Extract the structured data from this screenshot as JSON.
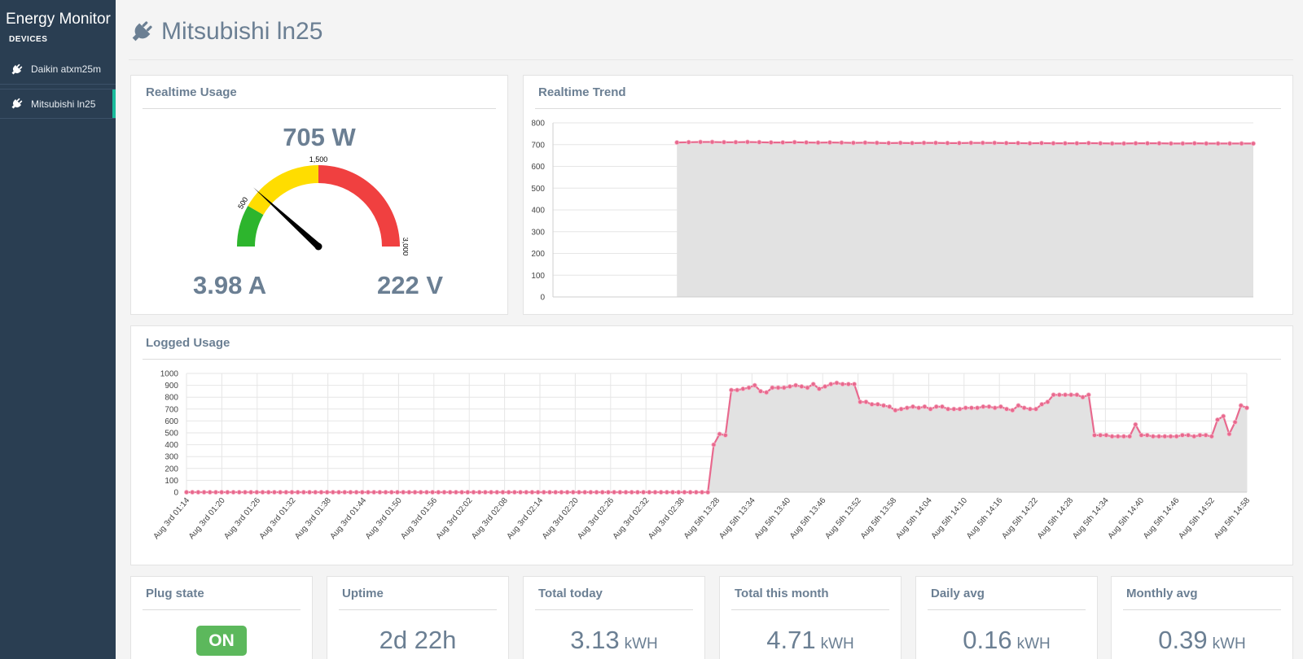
{
  "app": {
    "title": "Energy Monitor",
    "devices_header": "DEVICES"
  },
  "sidebar": {
    "items": [
      {
        "label": "Daikin atxm25m",
        "icon": "plug-icon",
        "active": false
      },
      {
        "label": "Mitsubishi ln25",
        "icon": "plug-icon",
        "active": true
      }
    ]
  },
  "header": {
    "title": "Mitsubishi ln25",
    "icon": "plug-icon"
  },
  "colors": {
    "sidebar": "#2a3e52",
    "line": "#e8698e",
    "green": "#2db52d",
    "yellow": "#ffdd00",
    "red": "#f04040",
    "badge": "#5cb85c",
    "active_marker": "#1abc9c"
  },
  "realtime": {
    "title": "Realtime Usage",
    "power": "705 W",
    "current": "3.98 A",
    "voltage": "222 V",
    "gauge": {
      "min": 0,
      "max": 3000,
      "value": 705,
      "green_to": 500,
      "yellow_to": 1500,
      "tick_labels": [
        "500",
        "1,500",
        "3,000"
      ]
    }
  },
  "trend": {
    "title": "Realtime Trend",
    "chart_data": {
      "type": "area",
      "ylim": [
        0,
        800
      ],
      "yticks": [
        0,
        100,
        200,
        300,
        400,
        500,
        600,
        700,
        800
      ],
      "x_start": 0.177,
      "values": [
        710,
        711,
        712,
        712,
        711,
        711,
        712,
        711,
        710,
        710,
        711,
        710,
        709,
        710,
        709,
        708,
        709,
        708,
        707,
        708,
        707,
        708,
        708,
        707,
        707,
        708,
        708,
        708,
        707,
        707,
        706,
        707,
        706,
        706,
        706,
        707,
        706,
        705,
        705,
        706,
        706,
        706,
        705,
        705,
        706,
        705,
        705,
        705,
        705,
        705
      ]
    }
  },
  "logged": {
    "title": "Logged Usage",
    "chart_data": {
      "type": "area",
      "ylim": [
        0,
        1000
      ],
      "yticks": [
        0,
        100,
        200,
        300,
        400,
        500,
        600,
        700,
        800,
        900,
        1000
      ],
      "xticks": [
        "Aug 3rd 01:14",
        "Aug 3rd 01:20",
        "Aug 3rd 01:26",
        "Aug 3rd 01:32",
        "Aug 3rd 01:38",
        "Aug 3rd 01:44",
        "Aug 3rd 01:50",
        "Aug 3rd 01:56",
        "Aug 3rd 02:02",
        "Aug 3rd 02:08",
        "Aug 3rd 02:14",
        "Aug 3rd 02:20",
        "Aug 3rd 02:26",
        "Aug 3rd 02:32",
        "Aug 3rd 02:38",
        "Aug 5th 13:28",
        "Aug 5th 13:34",
        "Aug 5th 13:40",
        "Aug 5th 13:46",
        "Aug 5th 13:52",
        "Aug 5th 13:58",
        "Aug 5th 14:04",
        "Aug 5th 14:10",
        "Aug 5th 14:16",
        "Aug 5th 14:22",
        "Aug 5th 14:28",
        "Aug 5th 14:34",
        "Aug 5th 14:40",
        "Aug 5th 14:46",
        "Aug 5th 14:52",
        "Aug 5th 14:58"
      ],
      "values": [
        0,
        0,
        0,
        0,
        0,
        0,
        0,
        0,
        0,
        0,
        0,
        0,
        0,
        0,
        0,
        0,
        0,
        0,
        0,
        0,
        0,
        0,
        0,
        0,
        0,
        0,
        0,
        0,
        0,
        0,
        0,
        0,
        0,
        0,
        0,
        0,
        0,
        0,
        0,
        0,
        0,
        0,
        0,
        0,
        0,
        0,
        0,
        0,
        0,
        0,
        0,
        0,
        0,
        0,
        0,
        0,
        0,
        0,
        0,
        0,
        0,
        0,
        0,
        0,
        0,
        0,
        0,
        0,
        0,
        0,
        0,
        0,
        0,
        0,
        0,
        0,
        0,
        0,
        0,
        0,
        0,
        0,
        0,
        0,
        0,
        0,
        0,
        0,
        0,
        0,
        400,
        490,
        480,
        860,
        860,
        870,
        880,
        900,
        850,
        840,
        880,
        880,
        880,
        890,
        900,
        890,
        880,
        910,
        870,
        890,
        910,
        920,
        910,
        910,
        910,
        760,
        760,
        740,
        740,
        730,
        720,
        690,
        700,
        710,
        720,
        710,
        720,
        700,
        720,
        720,
        700,
        700,
        700,
        710,
        710,
        710,
        720,
        720,
        710,
        720,
        700,
        690,
        730,
        710,
        700,
        700,
        740,
        760,
        820,
        820,
        820,
        820,
        820,
        800,
        820,
        480,
        480,
        480,
        470,
        470,
        470,
        470,
        570,
        480,
        480,
        470,
        470,
        470,
        470,
        470,
        480,
        480,
        470,
        480,
        480,
        470,
        610,
        640,
        490,
        590,
        730,
        710
      ]
    }
  },
  "stats": [
    {
      "title": "Plug state",
      "badge": "ON"
    },
    {
      "title": "Uptime",
      "value": "2d 22h"
    },
    {
      "title": "Total today",
      "value": "3.13",
      "unit": "kWH"
    },
    {
      "title": "Total this month",
      "value": "4.71",
      "unit": "kWH"
    },
    {
      "title": "Daily avg",
      "value": "0.16",
      "unit": "kWH"
    },
    {
      "title": "Monthly avg",
      "value": "0.39",
      "unit": "kWH"
    }
  ]
}
